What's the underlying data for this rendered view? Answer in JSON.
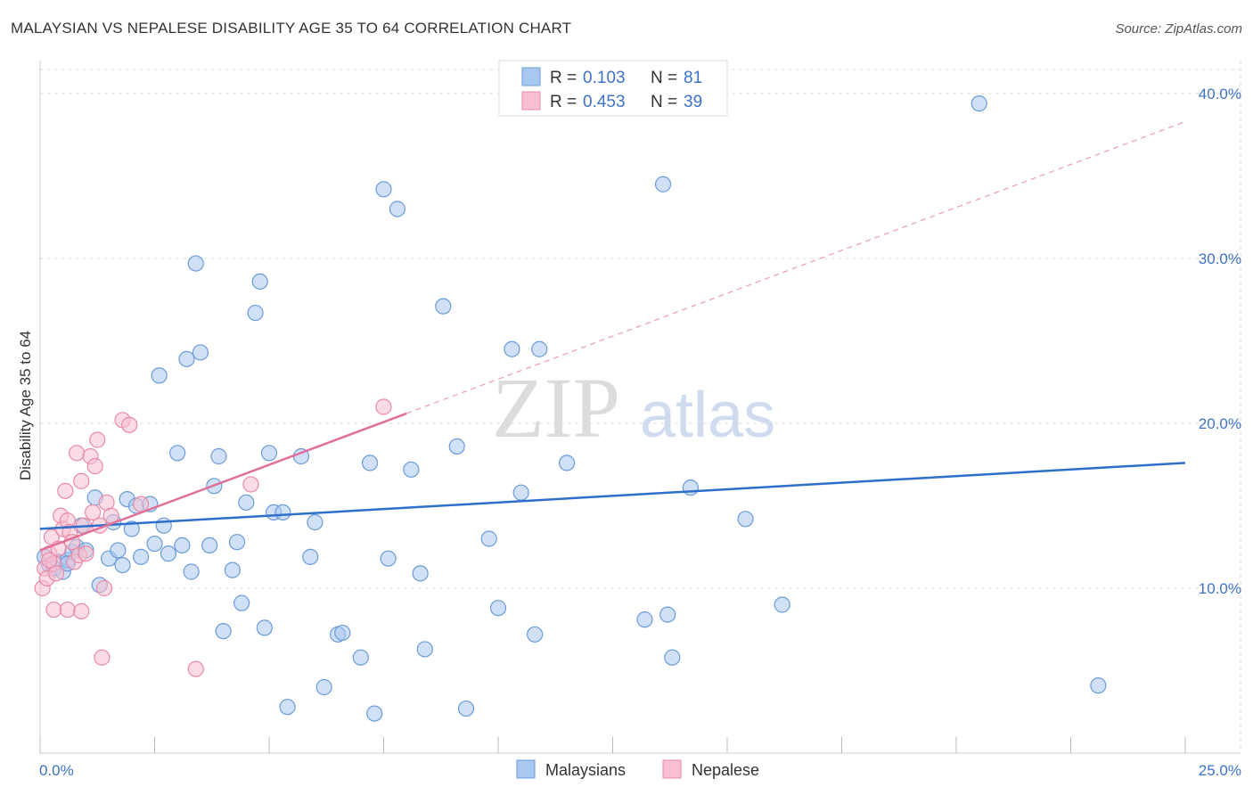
{
  "title": "MALAYSIAN VS NEPALESE DISABILITY AGE 35 TO 64 CORRELATION CHART",
  "source": "Source: ZipAtlas.com",
  "watermark": {
    "zip": "ZIP",
    "atlas": "atlas"
  },
  "colors": {
    "malaysians_fill": "#a9c8f0",
    "malaysians_stroke": "#6b9bd8",
    "malaysians_line": "#2f6fcc",
    "nepalese_fill": "#f7bfd0",
    "nepalese_stroke": "#e88aa8",
    "nepalese_line": "#e07098",
    "grid": "#dddddd",
    "tick_text": "#3d72c6"
  },
  "legend": {
    "rows": [
      {
        "r_label": "R =",
        "r_value": "0.103",
        "n_label": "N =",
        "n_value": "81"
      },
      {
        "r_label": "R =",
        "r_value": "0.453",
        "n_label": "N =",
        "n_value": "39"
      }
    ]
  },
  "chart_data": {
    "type": "scatter",
    "title": "MALAYSIAN VS NEPALESE DISABILITY AGE 35 TO 64 CORRELATION CHART",
    "xlabel": "",
    "ylabel": "Disability Age 35 to 64",
    "xlim": [
      0,
      25
    ],
    "ylim": [
      0,
      42
    ],
    "x_tick_labels": [
      "0.0%",
      "25.0%"
    ],
    "y_ticks": [
      10,
      20,
      30,
      40
    ],
    "y_tick_labels": [
      "10.0%",
      "20.0%",
      "30.0%",
      "40.0%"
    ],
    "legend_position": "top-center",
    "series": [
      {
        "name": "Malaysians",
        "trend": {
          "x0": 0,
          "y0": 13.6,
          "x1": 25,
          "y1": 17.6
        },
        "points": [
          [
            0.2,
            11.4
          ],
          [
            0.3,
            11.2
          ],
          [
            0.4,
            11.6
          ],
          [
            0.5,
            11.0
          ],
          [
            0.6,
            11.7
          ],
          [
            0.7,
            12.2
          ],
          [
            0.8,
            12.5
          ],
          [
            0.9,
            13.8
          ],
          [
            1.0,
            12.3
          ],
          [
            1.2,
            15.5
          ],
          [
            1.3,
            10.2
          ],
          [
            1.5,
            11.8
          ],
          [
            1.6,
            14.0
          ],
          [
            1.7,
            12.3
          ],
          [
            1.8,
            11.4
          ],
          [
            1.9,
            15.4
          ],
          [
            2.0,
            13.6
          ],
          [
            2.1,
            15.0
          ],
          [
            2.2,
            11.9
          ],
          [
            2.4,
            15.1
          ],
          [
            2.5,
            12.7
          ],
          [
            2.6,
            22.9
          ],
          [
            2.7,
            13.8
          ],
          [
            2.8,
            12.1
          ],
          [
            3.0,
            18.2
          ],
          [
            3.1,
            12.6
          ],
          [
            3.2,
            23.9
          ],
          [
            3.3,
            11.0
          ],
          [
            3.4,
            29.7
          ],
          [
            3.5,
            24.3
          ],
          [
            3.7,
            12.6
          ],
          [
            3.8,
            16.2
          ],
          [
            3.9,
            18.0
          ],
          [
            4.0,
            7.4
          ],
          [
            4.2,
            11.1
          ],
          [
            4.3,
            12.8
          ],
          [
            4.4,
            9.1
          ],
          [
            4.5,
            15.2
          ],
          [
            4.7,
            26.7
          ],
          [
            4.8,
            28.6
          ],
          [
            4.9,
            7.6
          ],
          [
            5.0,
            18.2
          ],
          [
            5.1,
            14.6
          ],
          [
            5.3,
            14.6
          ],
          [
            5.4,
            2.8
          ],
          [
            5.7,
            18.0
          ],
          [
            5.9,
            11.9
          ],
          [
            6.0,
            14.0
          ],
          [
            6.2,
            4.0
          ],
          [
            6.5,
            7.2
          ],
          [
            6.6,
            7.3
          ],
          [
            7.0,
            5.8
          ],
          [
            7.2,
            17.6
          ],
          [
            7.3,
            2.4
          ],
          [
            7.5,
            34.2
          ],
          [
            7.6,
            11.8
          ],
          [
            7.8,
            33.0
          ],
          [
            8.1,
            17.2
          ],
          [
            8.3,
            10.9
          ],
          [
            8.4,
            6.3
          ],
          [
            8.8,
            27.1
          ],
          [
            9.1,
            18.6
          ],
          [
            9.3,
            2.7
          ],
          [
            9.8,
            13.0
          ],
          [
            10.0,
            8.8
          ],
          [
            10.3,
            24.5
          ],
          [
            10.5,
            15.8
          ],
          [
            10.8,
            7.2
          ],
          [
            10.9,
            24.5
          ],
          [
            11.5,
            17.6
          ],
          [
            13.2,
            8.1
          ],
          [
            13.6,
            34.5
          ],
          [
            13.7,
            8.4
          ],
          [
            13.8,
            5.8
          ],
          [
            14.2,
            16.1
          ],
          [
            15.4,
            14.2
          ],
          [
            16.2,
            9.0
          ],
          [
            20.5,
            39.4
          ],
          [
            23.1,
            4.1
          ],
          [
            0.1,
            11.9
          ],
          [
            0.6,
            11.5
          ]
        ]
      },
      {
        "name": "Nepalese",
        "trend": {
          "x0": 0,
          "y0": 12.3,
          "x1": 8.0,
          "y1": 20.6
        },
        "trend_extended": {
          "x0": 8.0,
          "y0": 20.6,
          "x1": 25,
          "y1": 38.3
        },
        "points": [
          [
            0.05,
            10.0
          ],
          [
            0.1,
            11.2
          ],
          [
            0.15,
            10.6
          ],
          [
            0.2,
            12.1
          ],
          [
            0.25,
            13.1
          ],
          [
            0.3,
            11.5
          ],
          [
            0.35,
            10.9
          ],
          [
            0.4,
            12.4
          ],
          [
            0.45,
            14.4
          ],
          [
            0.5,
            13.6
          ],
          [
            0.55,
            15.9
          ],
          [
            0.6,
            14.1
          ],
          [
            0.65,
            13.4
          ],
          [
            0.7,
            12.8
          ],
          [
            0.75,
            11.6
          ],
          [
            0.8,
            18.2
          ],
          [
            0.85,
            12.0
          ],
          [
            0.9,
            16.5
          ],
          [
            0.95,
            13.8
          ],
          [
            1.0,
            12.1
          ],
          [
            1.1,
            18.0
          ],
          [
            1.15,
            14.6
          ],
          [
            1.2,
            17.4
          ],
          [
            1.25,
            19.0
          ],
          [
            1.3,
            13.8
          ],
          [
            1.35,
            5.8
          ],
          [
            1.4,
            10.0
          ],
          [
            1.45,
            15.2
          ],
          [
            1.55,
            14.4
          ],
          [
            1.8,
            20.2
          ],
          [
            1.95,
            19.9
          ],
          [
            2.2,
            15.1
          ],
          [
            3.4,
            5.1
          ],
          [
            4.6,
            16.3
          ],
          [
            7.5,
            21.0
          ],
          [
            0.3,
            8.7
          ],
          [
            0.6,
            8.7
          ],
          [
            0.9,
            8.6
          ],
          [
            0.2,
            11.7
          ]
        ]
      }
    ],
    "bottom_legend": [
      "Malaysians",
      "Nepalese"
    ]
  }
}
